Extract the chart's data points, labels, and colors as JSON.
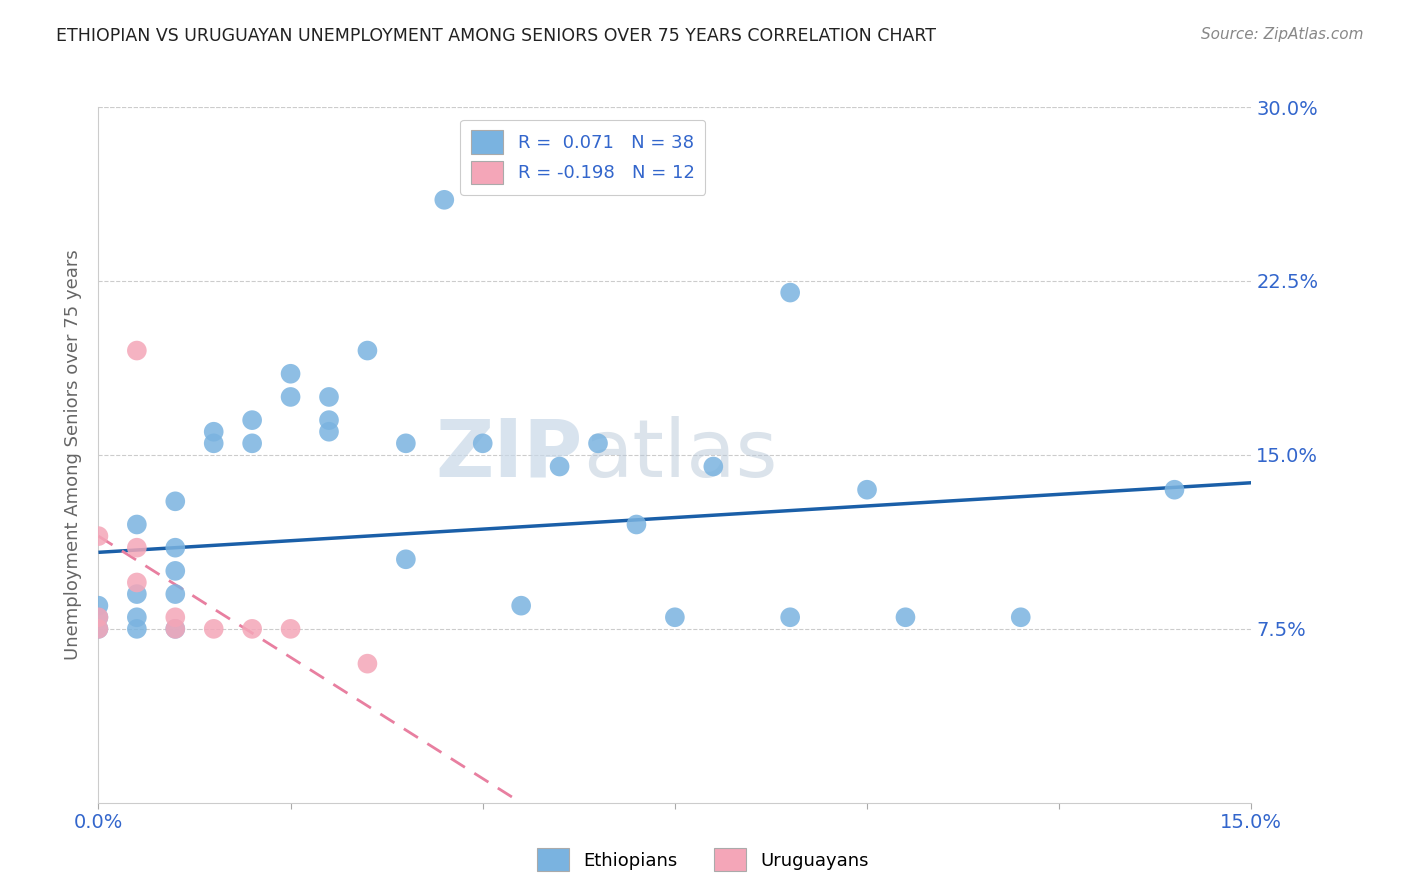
{
  "title": "ETHIOPIAN VS URUGUAYAN UNEMPLOYMENT AMONG SENIORS OVER 75 YEARS CORRELATION CHART",
  "source": "Source: ZipAtlas.com",
  "ylabel": "Unemployment Among Seniors over 75 years",
  "xlim": [
    0,
    0.15
  ],
  "ylim": [
    0,
    0.3
  ],
  "xticks": [
    0.0,
    0.025,
    0.05,
    0.075,
    0.1,
    0.125,
    0.15
  ],
  "xticklabels": [
    "0.0%",
    "",
    "",
    "",
    "",
    "",
    "15.0%"
  ],
  "yticks": [
    0.0,
    0.075,
    0.15,
    0.225,
    0.3
  ],
  "yticklabels": [
    "",
    "7.5%",
    "15.0%",
    "22.5%",
    "30.0%"
  ],
  "ethiopian_color": "#7ab3e0",
  "uruguayan_color": "#f4a6b8",
  "ethiopian_line_color": "#1a5fa8",
  "uruguayan_line_color": "#e87fa0",
  "watermark_zip": "ZIP",
  "watermark_atlas": "atlas",
  "legend_eth": "R =  0.071   N = 38",
  "legend_uru": "R = -0.198   N = 12",
  "eth_x": [
    0.0,
    0.0,
    0.0,
    0.005,
    0.005,
    0.005,
    0.005,
    0.01,
    0.01,
    0.01,
    0.01,
    0.01,
    0.015,
    0.015,
    0.02,
    0.02,
    0.025,
    0.025,
    0.03,
    0.03,
    0.03,
    0.035,
    0.04,
    0.04,
    0.045,
    0.05,
    0.055,
    0.06,
    0.065,
    0.07,
    0.075,
    0.08,
    0.09,
    0.09,
    0.1,
    0.105,
    0.12,
    0.14
  ],
  "eth_y": [
    0.075,
    0.08,
    0.085,
    0.075,
    0.08,
    0.09,
    0.12,
    0.075,
    0.09,
    0.1,
    0.11,
    0.13,
    0.155,
    0.16,
    0.155,
    0.165,
    0.175,
    0.185,
    0.16,
    0.165,
    0.175,
    0.195,
    0.105,
    0.155,
    0.26,
    0.155,
    0.085,
    0.145,
    0.155,
    0.12,
    0.08,
    0.145,
    0.08,
    0.22,
    0.135,
    0.08,
    0.08,
    0.135
  ],
  "uru_x": [
    0.0,
    0.0,
    0.0,
    0.005,
    0.005,
    0.005,
    0.01,
    0.01,
    0.015,
    0.02,
    0.025,
    0.035
  ],
  "uru_y": [
    0.115,
    0.075,
    0.08,
    0.095,
    0.11,
    0.195,
    0.075,
    0.08,
    0.075,
    0.075,
    0.075,
    0.06
  ],
  "eth_trend_x": [
    0.0,
    0.15
  ],
  "eth_trend_y_start": 0.108,
  "eth_trend_y_end": 0.138,
  "uru_trend_x": [
    0.0,
    0.055
  ],
  "uru_trend_y_start": 0.115,
  "uru_trend_y_end": 0.0
}
